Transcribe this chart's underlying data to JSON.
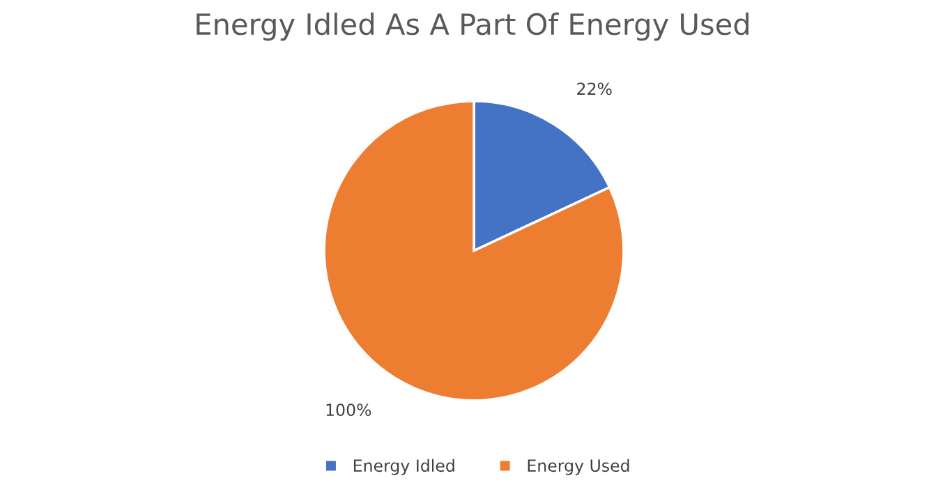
{
  "chart_data": {
    "type": "pie",
    "title": "Energy Idled As A Part Of Energy Used",
    "categories": [
      "Energy Idled",
      "Energy Used"
    ],
    "values": [
      22,
      100
    ],
    "colors": [
      "#4472c4",
      "#ed7d31"
    ],
    "value_labels": [
      "22%",
      "100%"
    ],
    "legend": "bottom"
  }
}
